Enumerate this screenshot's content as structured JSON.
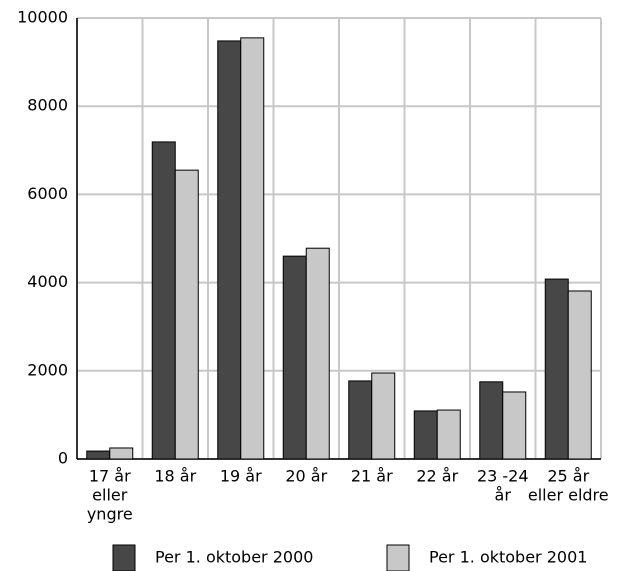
{
  "chart_data": {
    "type": "bar",
    "categories": [
      [
        "17 år",
        "eller",
        "yngre"
      ],
      [
        "18 år"
      ],
      [
        "19 år"
      ],
      [
        "20 år"
      ],
      [
        "21 år"
      ],
      [
        "22 år"
      ],
      [
        "23 -24",
        "år"
      ],
      [
        "25 år",
        "eller eldre"
      ]
    ],
    "series": [
      {
        "name": "Per 1. oktober 2000",
        "color": "#474747",
        "values": [
          180,
          7190,
          9480,
          4600,
          1770,
          1090,
          1750,
          4080
        ]
      },
      {
        "name": "Per 1. oktober 2001",
        "color": "#c8c8c8",
        "values": [
          250,
          6550,
          9550,
          4780,
          1950,
          1110,
          1520,
          3810
        ]
      }
    ],
    "ylim": [
      0,
      10000
    ],
    "yticks": [
      0,
      2000,
      4000,
      6000,
      8000,
      10000
    ],
    "grid": true
  }
}
